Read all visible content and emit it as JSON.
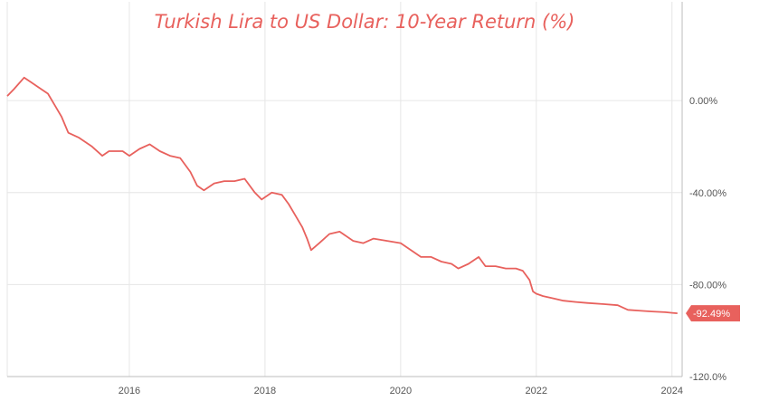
{
  "chart_data": {
    "type": "line",
    "title": "Turkish Lira to US Dollar: 10-Year Return (%)",
    "xlabel": "",
    "ylabel": "",
    "x_ticks": [
      "2016",
      "2018",
      "2020",
      "2022",
      "2024"
    ],
    "y_ticks": [
      "0.00%",
      "-40.00%",
      "-80.00%",
      "-120.0%"
    ],
    "xlim": [
      2014.2,
      2024.15
    ],
    "ylim": [
      -120,
      28
    ],
    "grid": true,
    "line_color": "#e8615d",
    "last_value_label": "-92.49%",
    "series": [
      {
        "x": [
          2014.2,
          2014.3,
          2014.45,
          2014.55,
          2014.65,
          2014.8,
          2014.9,
          2015.0,
          2015.1,
          2015.25,
          2015.45,
          2015.6,
          2015.7,
          2015.9,
          2016.0,
          2016.15,
          2016.3,
          2016.45,
          2016.6,
          2016.75,
          2016.9,
          2017.0,
          2017.1,
          2017.25,
          2017.4,
          2017.55,
          2017.7,
          2017.85,
          2017.95,
          2018.1,
          2018.25,
          2018.35,
          2018.45,
          2018.55,
          2018.62,
          2018.68,
          2018.8,
          2018.95,
          2019.1,
          2019.3,
          2019.45,
          2019.6,
          2019.8,
          2020.0,
          2020.15,
          2020.3,
          2020.45,
          2020.6,
          2020.75,
          2020.85,
          2021.0,
          2021.15,
          2021.25,
          2021.4,
          2021.55,
          2021.7,
          2021.8,
          2021.9,
          2021.95,
          2022.0,
          2022.1,
          2022.25,
          2022.4,
          2022.55,
          2022.75,
          2023.0,
          2023.2,
          2023.35,
          2023.5,
          2023.7,
          2023.9,
          2024.0,
          2024.08
        ],
        "y": [
          2,
          5,
          10,
          8,
          6,
          3,
          -2,
          -7,
          -14,
          -16,
          -20,
          -24,
          -22,
          -22,
          -24,
          -21,
          -19,
          -22,
          -24,
          -25,
          -31,
          -37,
          -39,
          -36,
          -35,
          -35,
          -34,
          -40,
          -43,
          -40,
          -41,
          -45,
          -50,
          -55,
          -60,
          -65,
          -62,
          -58,
          -57,
          -61,
          -62,
          -60,
          -61,
          -62,
          -65,
          -68,
          -68,
          -70,
          -71,
          -73,
          -71,
          -68,
          -72,
          -72,
          -73,
          -73,
          -74,
          -78,
          -83,
          -84,
          -85,
          -86,
          -87,
          -87.5,
          -88,
          -88.5,
          -89,
          -91,
          -91.3,
          -91.7,
          -92,
          -92.3,
          -92.49
        ]
      }
    ]
  }
}
